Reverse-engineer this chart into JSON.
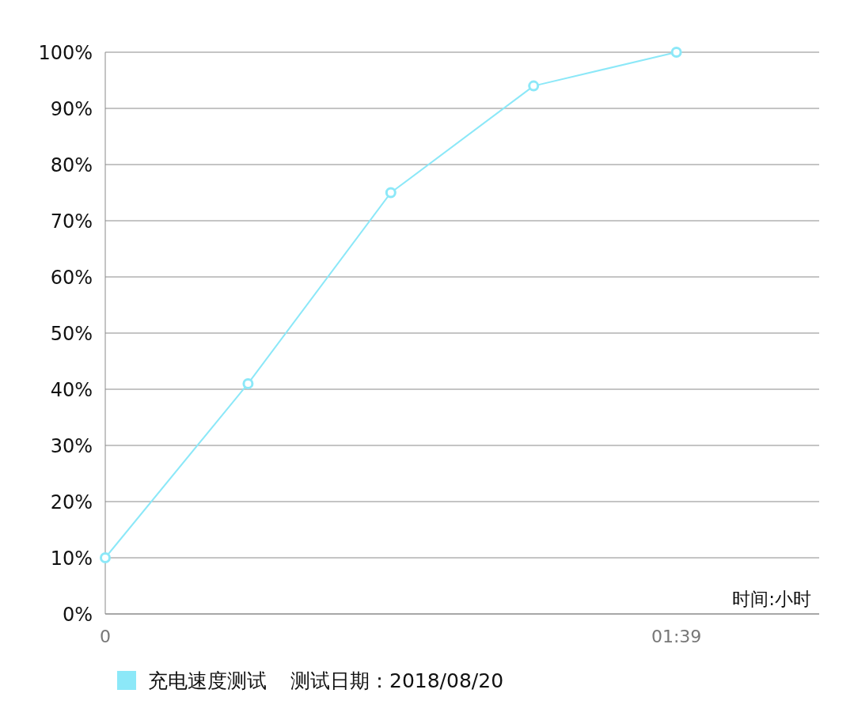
{
  "chart_data": {
    "type": "line",
    "x": [
      0,
      0.4125,
      0.825,
      1.2375,
      1.65
    ],
    "xlim": [
      0,
      2.0625
    ],
    "xticks": [
      {
        "value": 0,
        "label": "0"
      },
      {
        "value": 1.65,
        "label": "01:39"
      }
    ],
    "ylim": [
      0,
      100
    ],
    "yticks": [
      {
        "value": 0,
        "label": "0%"
      },
      {
        "value": 10,
        "label": "10%"
      },
      {
        "value": 20,
        "label": "20%"
      },
      {
        "value": 30,
        "label": "30%"
      },
      {
        "value": 40,
        "label": "40%"
      },
      {
        "value": 50,
        "label": "50%"
      },
      {
        "value": 60,
        "label": "60%"
      },
      {
        "value": 70,
        "label": "70%"
      },
      {
        "value": 80,
        "label": "80%"
      },
      {
        "value": 90,
        "label": "90%"
      },
      {
        "value": 100,
        "label": "100%"
      }
    ],
    "xlabel": "时间:小时",
    "series": [
      {
        "name": "充电速度测试",
        "color": "#8ce8f8",
        "values": [
          10,
          41,
          75,
          94,
          100
        ]
      }
    ],
    "annotations": [
      "测试日期：2018/08/20"
    ],
    "grid": "y",
    "legend": "bottom",
    "marker": "circle"
  }
}
